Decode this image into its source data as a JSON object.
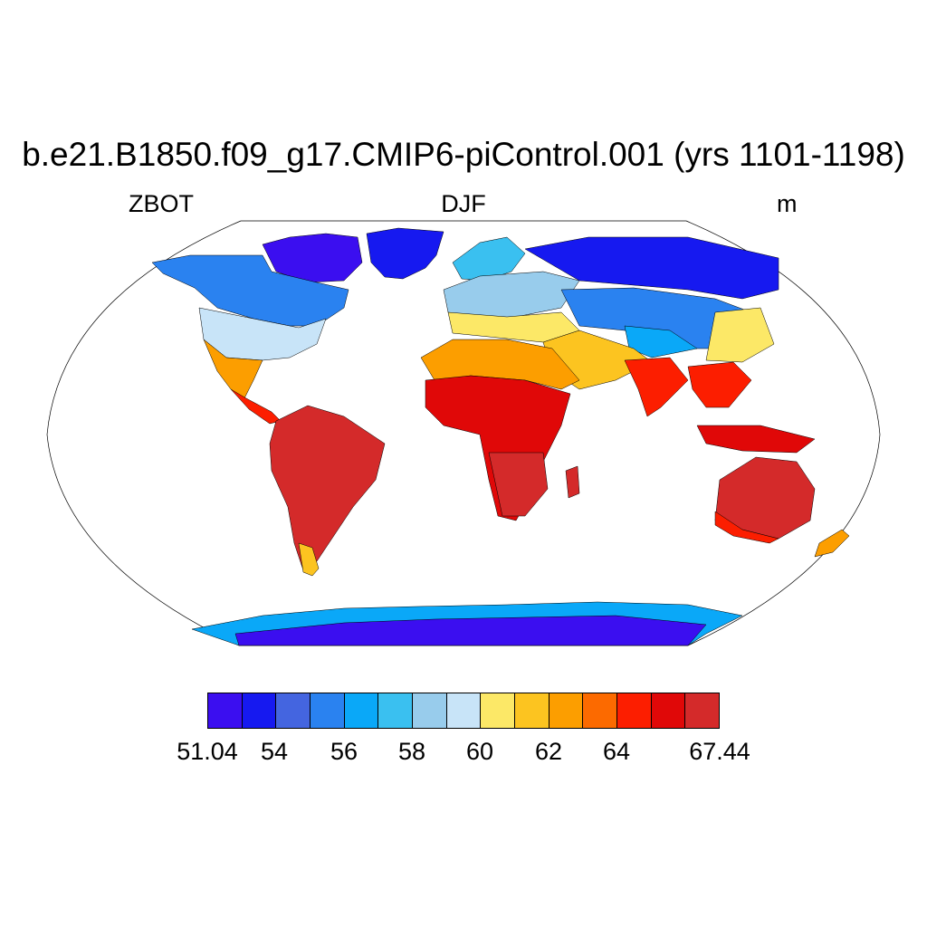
{
  "title": "b.e21.B1850.f09_g17.CMIP6-piControl.001 (yrs 1101-1198)",
  "variable": "ZBOT",
  "season": "DJF",
  "units": "m",
  "map": {
    "projection": "Robinson",
    "background_color": "#ffffff",
    "regions": [
      {
        "name": "Canadian Arctic Archipelago",
        "value_bin": 0
      },
      {
        "name": "Greenland",
        "value_bin": 1
      },
      {
        "name": "Siberia",
        "value_bin": 1
      },
      {
        "name": "Northern Canada",
        "value_bin": 3
      },
      {
        "name": "Europe",
        "value_bin": 6
      },
      {
        "name": "United States",
        "value_bin": 7
      },
      {
        "name": "Mediterranean",
        "value_bin": 8
      },
      {
        "name": "Mexico",
        "value_bin": 10
      },
      {
        "name": "Sahara",
        "value_bin": 10
      },
      {
        "name": "India",
        "value_bin": 12
      },
      {
        "name": "Central Africa",
        "value_bin": 13
      },
      {
        "name": "Amazon",
        "value_bin": 14
      },
      {
        "name": "Australia",
        "value_bin": 14
      },
      {
        "name": "Antarctica",
        "value_bin": 0
      }
    ]
  },
  "colorbar": {
    "colors": [
      "#3b0ef0",
      "#1619f0",
      "#4465e0",
      "#2a82f0",
      "#0aa8f8",
      "#3ac0f0",
      "#98ccec",
      "#c8e4f8",
      "#fce867",
      "#fcc420",
      "#fc9e00",
      "#fc6a00",
      "#fc1e00",
      "#e00808",
      "#d42a2a"
    ],
    "labels": [
      "51.04",
      "54",
      "56",
      "58",
      "60",
      "62",
      "64",
      "67.44"
    ]
  }
}
